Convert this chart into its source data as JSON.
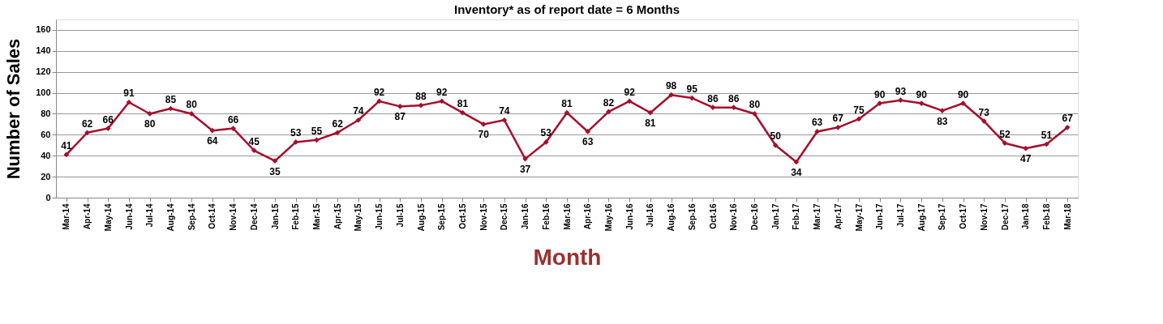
{
  "chart_data": {
    "type": "line",
    "title": "Inventory* as of report date = 6 Months",
    "xlabel": "Month",
    "ylabel": "Number of Sales",
    "categories": [
      "Mar-14",
      "Apr-14",
      "May-14",
      "Jun-14",
      "Jul-14",
      "Aug-14",
      "Sep-14",
      "Oct-14",
      "Nov-14",
      "Dec-14",
      "Jan-15",
      "Feb-15",
      "Mar-15",
      "Apr-15",
      "May-15",
      "Jun-15",
      "Jul-15",
      "Aug-15",
      "Sep-15",
      "Oct-15",
      "Nov-15",
      "Dec-15",
      "Jan-16",
      "Feb-16",
      "Mar-16",
      "Apr-16",
      "May-16",
      "Jun-16",
      "Jul-16",
      "Aug-16",
      "Sep-16",
      "Oct-16",
      "Nov-16",
      "Dec-16",
      "Jan-17",
      "Feb-17",
      "Mar-17",
      "Apr-17",
      "May-17",
      "Jun-17",
      "Jul-17",
      "Aug-17",
      "Sep-17",
      "Oct-17",
      "Nov-17",
      "Dec-17",
      "Jan-18",
      "Feb-18",
      "Mar-18"
    ],
    "series": [
      {
        "color": "#a50f2d",
        "values": [
          41,
          62,
          66,
          91,
          80,
          85,
          80,
          64,
          66,
          45,
          35,
          53,
          55,
          62,
          74,
          92,
          87,
          88,
          92,
          81,
          70,
          74,
          37,
          53,
          81,
          63,
          82,
          92,
          81,
          98,
          95,
          86,
          86,
          80,
          50,
          34,
          63,
          67,
          75,
          90,
          93,
          90,
          83,
          90,
          73,
          52,
          47,
          51,
          67
        ]
      }
    ],
    "ylim": [
      0,
      170
    ],
    "yticks": [
      0,
      20,
      40,
      60,
      80,
      100,
      120,
      140,
      160
    ],
    "grid": "y",
    "marker": "diamond",
    "line_style": "solid",
    "data_labels": true
  }
}
